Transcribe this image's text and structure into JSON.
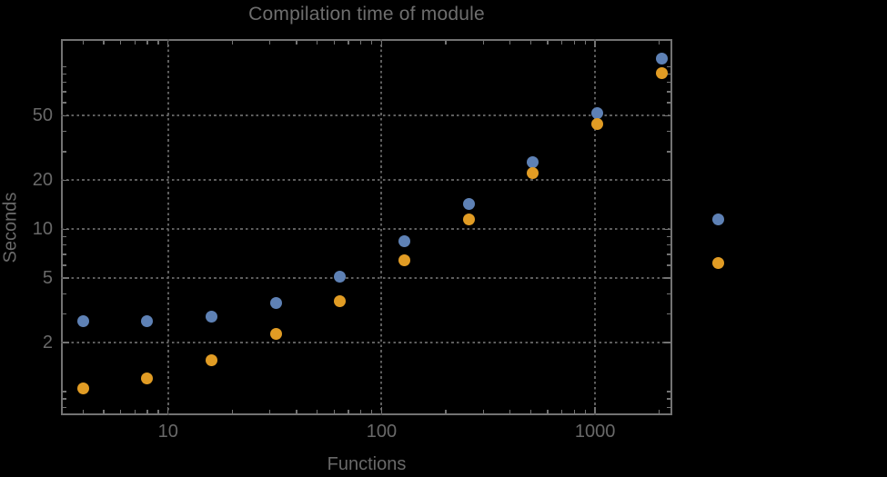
{
  "chart_data": {
    "type": "scatter",
    "title": "Compilation time of module",
    "xlabel": "Functions",
    "ylabel": "Seconds",
    "x_scale": "log",
    "y_scale": "log",
    "xlim": [
      3.15,
      2300
    ],
    "ylim": [
      0.715,
      148
    ],
    "grid": true,
    "x_ticks": [
      {
        "value": 10,
        "label": "10"
      },
      {
        "value": 100,
        "label": "100"
      },
      {
        "value": 1000,
        "label": "1000"
      }
    ],
    "y_ticks": [
      {
        "value": 2,
        "label": "2"
      },
      {
        "value": 5,
        "label": "5"
      },
      {
        "value": 10,
        "label": "10"
      },
      {
        "value": 20,
        "label": "20"
      },
      {
        "value": 50,
        "label": "50"
      }
    ],
    "x_minor_ticks": [
      4,
      5,
      6,
      7,
      8,
      9,
      20,
      30,
      40,
      50,
      60,
      70,
      80,
      90,
      200,
      300,
      400,
      500,
      600,
      700,
      800,
      900,
      2000
    ],
    "y_minor_ticks": [
      0.8,
      0.9,
      1,
      3,
      4,
      6,
      7,
      8,
      9,
      30,
      40,
      60,
      70,
      80,
      90,
      100
    ],
    "categories": [
      4,
      8,
      16,
      32,
      64,
      128,
      256,
      512,
      1024,
      2048
    ],
    "series": [
      {
        "name": "blue-series",
        "color": "#5e81b5",
        "values": [
          2.7,
          2.7,
          2.9,
          3.5,
          5.1,
          8.4,
          14.2,
          26,
          52,
          112
        ]
      },
      {
        "name": "orange-series",
        "color": "#e19c24",
        "values": [
          1.05,
          1.2,
          1.55,
          2.25,
          3.6,
          6.4,
          11.5,
          22,
          44.5,
          91
        ]
      }
    ],
    "legend": {
      "position": "right-outside",
      "markers": [
        {
          "series": "blue-series",
          "color": "#5e81b5"
        },
        {
          "series": "orange-series",
          "color": "#e19c24"
        }
      ]
    }
  },
  "colors": {
    "background": "#000000",
    "frame": "#737373",
    "grid": "#5e5e5e",
    "text": "#696969",
    "title": "#6e6e6e"
  }
}
